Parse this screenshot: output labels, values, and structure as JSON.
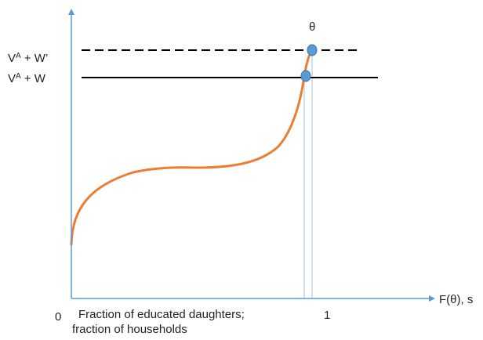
{
  "colors": {
    "axis": "#5b9bd5",
    "curve": "#ed7d31",
    "line": "#000000",
    "point_fill": "#5b9bd5",
    "point_stroke": "#41719c",
    "drop_line": "#9dc3e6"
  },
  "labels": {
    "theta": "θ",
    "line_upper": {
      "base": "V",
      "sup": "A",
      "rest": " + W’"
    },
    "line_lower": {
      "base": "V",
      "sup": "A",
      "rest": " + W"
    },
    "origin": "0",
    "x_axis": "F(θ), s",
    "one": "1",
    "x_desc_line1": "Fraction of educated daughters;",
    "x_desc_line2": "fraction of households"
  }
}
